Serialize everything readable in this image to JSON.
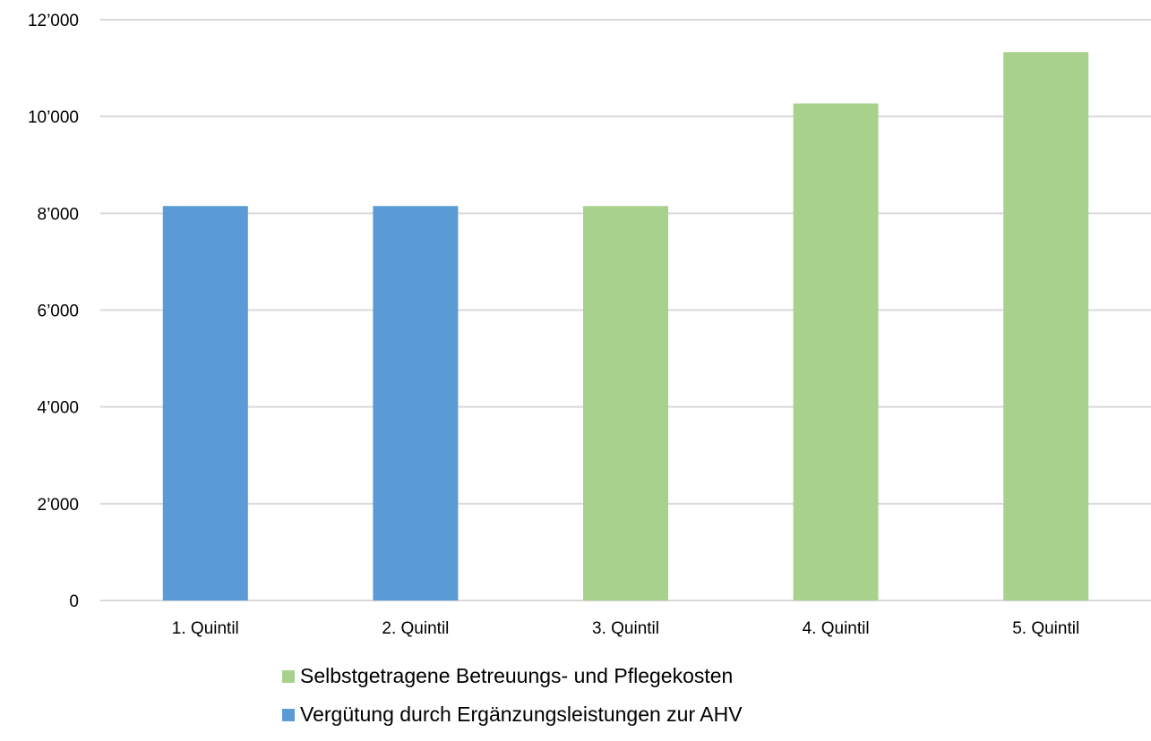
{
  "chart_data": {
    "type": "bar",
    "categories": [
      "1. Quintil",
      "2. Quintil",
      "3. Quintil",
      "4. Quintil",
      "5. Quintil"
    ],
    "series": [
      {
        "name": "Selbstgetragene Betreuungs- und Pflegekosten",
        "values": [
          0,
          0,
          8150,
          10270,
          11330
        ],
        "color": "#a9d18e"
      },
      {
        "name": "Vergütung durch Ergänzungsleistungen zur AHV",
        "values": [
          8150,
          8150,
          0,
          0,
          0
        ],
        "color": "#5b9bd5"
      }
    ],
    "ylim": [
      0,
      12000
    ],
    "yticks": [
      0,
      2000,
      4000,
      6000,
      8000,
      10000,
      12000
    ],
    "ytick_labels": [
      "0",
      "2’000",
      "4’000",
      "6’000",
      "8’000",
      "10’000",
      "12’000"
    ],
    "title": "",
    "xlabel": "",
    "ylabel": "",
    "grid": true,
    "legend_position": "bottom"
  },
  "legend": {
    "items": [
      {
        "label": "Selbstgetragene Betreuungs- und Pflegekosten",
        "color": "#a9d18e"
      },
      {
        "label": "Vergütung durch Ergänzungsleistungen zur AHV",
        "color": "#5b9bd5"
      }
    ]
  }
}
